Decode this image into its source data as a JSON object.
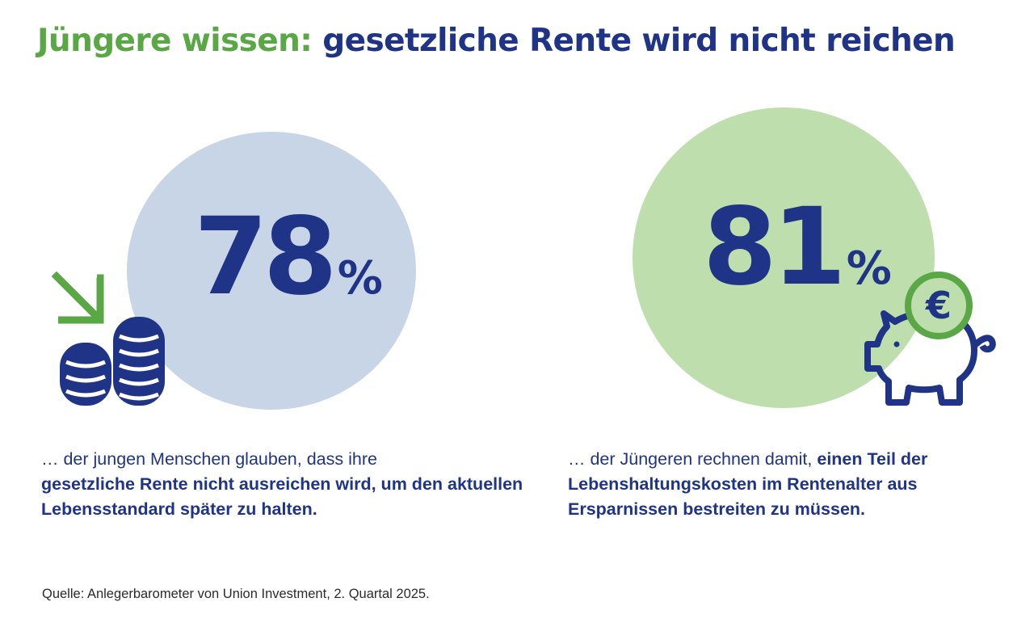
{
  "title": {
    "part1": "Jüngere wissen:",
    "part2": "gesetzliche Rente wird nicht reichen"
  },
  "stats": [
    {
      "value": "78",
      "unit": "%",
      "icon": "coins-down-arrow-icon",
      "text_regular": "… der jungen Menschen glauben, dass ihre",
      "text_bold": "gesetzliche Rente nicht ausreichen wird, um den aktuellen Lebensstandard später zu halten.",
      "circle_color": "#c8d5e6"
    },
    {
      "value": "81",
      "unit": "%",
      "icon": "piggy-bank-euro-icon",
      "text_regular": "… der Jüngeren rechnen damit,",
      "text_bold": "einen Teil der Lebenshaltungskosten im Rentenalter aus Ersparnissen bestreiten zu müssen.",
      "circle_color": "#bfdeae"
    }
  ],
  "source": "Quelle: Anlegerbarometer von Union Investment, 2. Quartal 2025.",
  "colors": {
    "brand_blue": "#1f3486",
    "brand_green": "#5aa845"
  }
}
